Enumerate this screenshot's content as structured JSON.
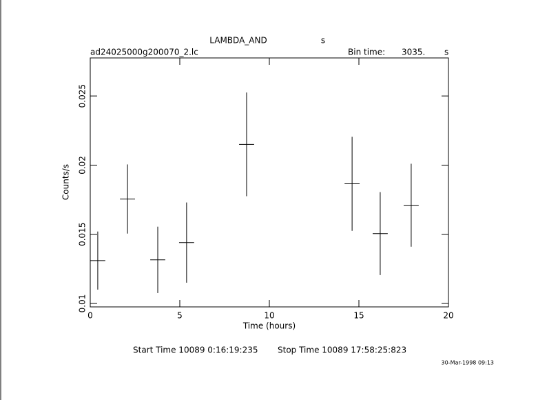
{
  "chart_data": {
    "type": "errorbar",
    "title": "LAMBDA_AND",
    "title_unit": "s",
    "file": "ad24025000g200070_2.lc",
    "bin_time_label": "Bin time:",
    "bin_time": "3035.",
    "bin_time_unit": "s",
    "x_label": "Time (hours)",
    "y_label": "Counts/s",
    "start_time": "Start Time 10089  0:16:19:235",
    "stop_time": "Stop Time 10089 17:58:25:823",
    "date": "30-Mar-1998 09:13",
    "x": [
      0.42,
      2.08,
      3.77,
      5.38,
      8.73,
      14.62,
      16.19,
      17.92
    ],
    "xerr": [
      0.42,
      0.42,
      0.42,
      0.42,
      0.42,
      0.42,
      0.42,
      0.42
    ],
    "values": [
      0.0131,
      0.01755,
      0.01315,
      0.0144,
      0.0215,
      0.01865,
      0.01505,
      0.0171
    ],
    "errors": [
      0.0021,
      0.0025,
      0.0024,
      0.0029,
      0.00375,
      0.0034,
      0.003,
      0.003
    ],
    "color": "#000000",
    "xlim": [
      0,
      20
    ],
    "xticks": [
      0,
      5,
      10,
      15,
      20
    ],
    "ylim": [
      0.00975,
      0.02775
    ],
    "yticks": [
      0.01,
      0.015,
      0.02,
      0.025
    ]
  }
}
